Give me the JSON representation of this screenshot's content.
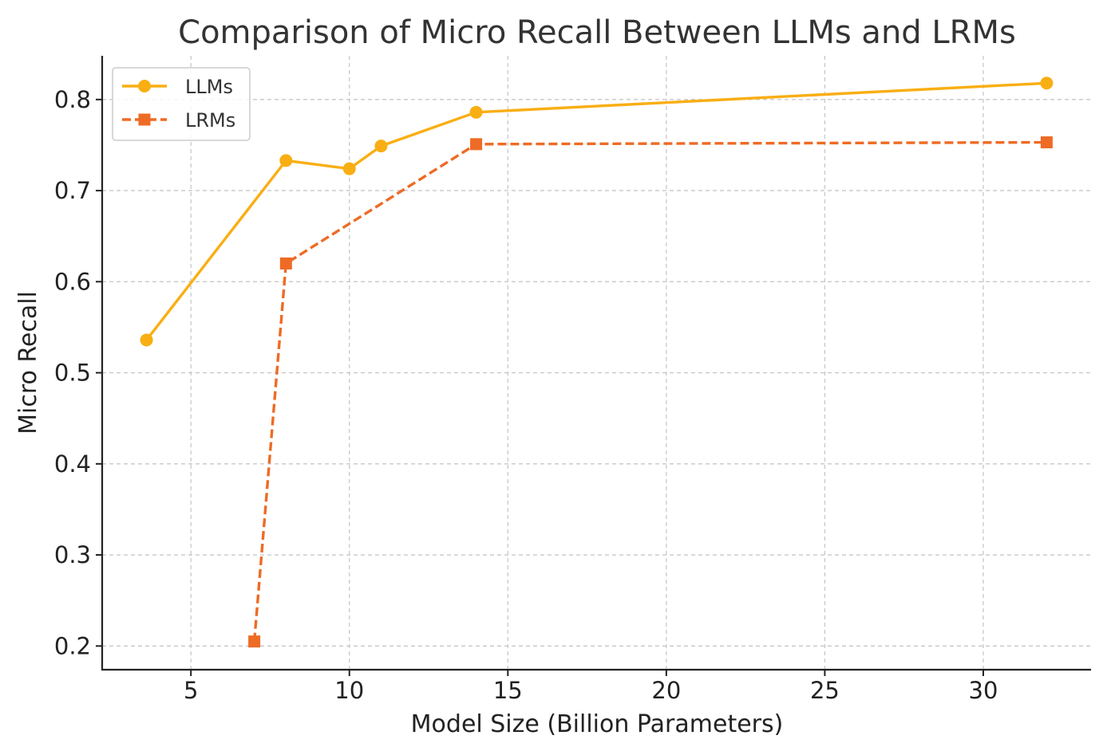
{
  "chart_data": {
    "type": "line",
    "title": "Comparison of Micro Recall Between LLMs and LRMs",
    "xlabel": "Model Size (Billion Parameters)",
    "ylabel": "Micro Recall",
    "xlim": [
      2.2,
      33.4
    ],
    "ylim": [
      0.174,
      0.848
    ],
    "xticks": [
      5,
      10,
      15,
      20,
      25,
      30
    ],
    "yticks": [
      0.2,
      0.3,
      0.4,
      0.5,
      0.6,
      0.7,
      0.8
    ],
    "xtick_labels": [
      "5",
      "10",
      "15",
      "20",
      "25",
      "30"
    ],
    "ytick_labels": [
      "0.2",
      "0.3",
      "0.4",
      "0.5",
      "0.6",
      "0.7",
      "0.8"
    ],
    "grid": true,
    "legend_position": "top-left",
    "series": [
      {
        "name": "LLMs",
        "color": "#F9AE13",
        "line_style": "solid",
        "marker": "circle",
        "x": [
          3.6,
          8,
          10,
          11,
          14,
          32
        ],
        "y": [
          0.536,
          0.733,
          0.724,
          0.749,
          0.786,
          0.818
        ]
      },
      {
        "name": "LRMs",
        "color": "#EE6B25",
        "line_style": "dashed",
        "marker": "square",
        "x": [
          7,
          8,
          14,
          32
        ],
        "y": [
          0.205,
          0.62,
          0.751,
          0.753
        ]
      }
    ]
  }
}
